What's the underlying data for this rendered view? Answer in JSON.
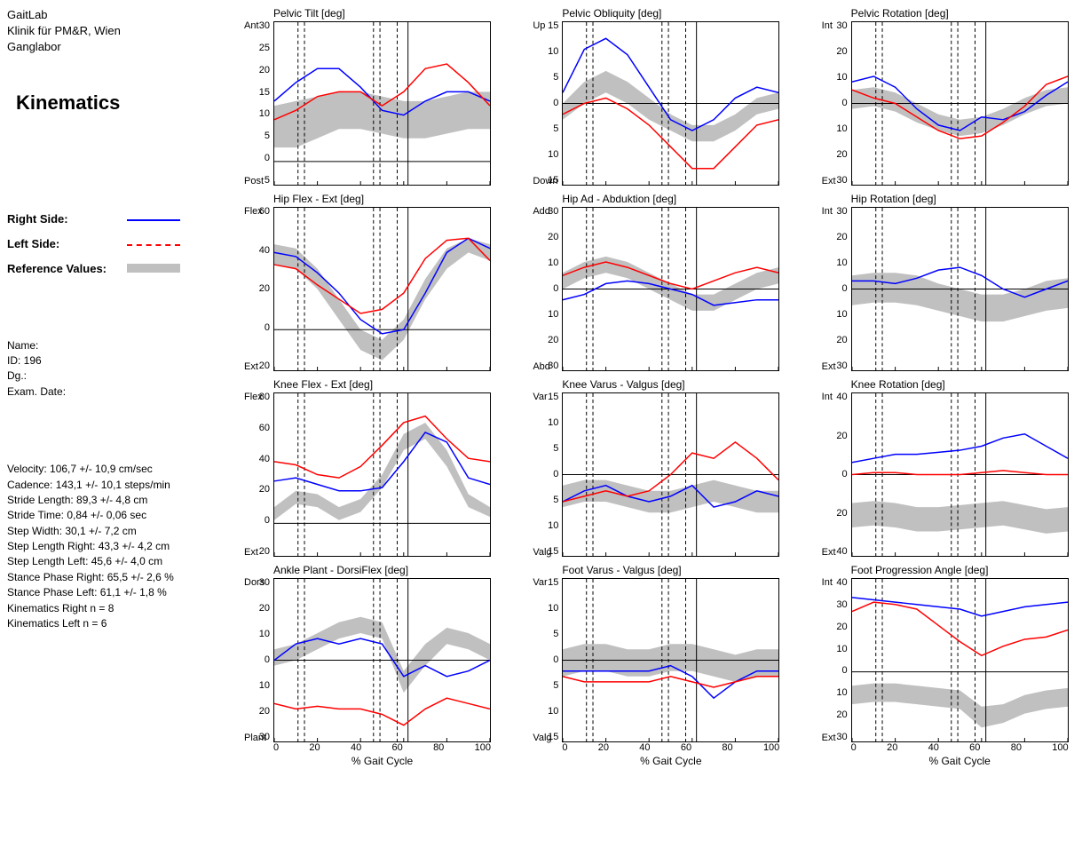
{
  "header": {
    "lab": "GaitLab",
    "clinic": "Klinik für PM&R, Wien",
    "dept": "Ganglabor",
    "title": "Kinematics"
  },
  "legend": {
    "right": "Right Side:",
    "left": "Left Side:",
    "ref": "Reference Values:"
  },
  "colors": {
    "right": "#0000ff",
    "left": "#ff0000",
    "ref": "#c0c0c0",
    "axis": "#000000",
    "border": "#000000",
    "bg": "#ffffff"
  },
  "meta": {
    "name_label": "Name:",
    "id_label": "ID: 196",
    "dg_label": "Dg.:",
    "date_label": "Exam. Date:"
  },
  "stats": [
    "Velocity: 106,7 +/- 10,9 cm/sec",
    "Cadence: 143,1 +/- 10,1 steps/min",
    "Stride Length:  89,3 +/- 4,8 cm",
    "Stride Time:  0,84 +/- 0,06 sec",
    "Step Width: 30,1 +/- 7,2 cm",
    "Step Length Right:  43,3 +/- 4,2 cm",
    "Step Length Left:  45,6 +/- 4,0 cm",
    "Stance Phase Right:  65,5 +/- 2,6 %",
    "Stance Phase Left:  61,1 +/- 1,8 %",
    "Kinematics Right n = 8",
    "Kinematics Left n = 6"
  ],
  "xaxis": {
    "label": "% Gait Cycle",
    "ticks": [
      0,
      20,
      40,
      60,
      80,
      100
    ]
  },
  "charts": [
    {
      "title": "Pelvic Tilt [deg]",
      "ymin": -5,
      "ymax": 30,
      "yticks": [
        30,
        25,
        20,
        15,
        10,
        5,
        0,
        5
      ],
      "top_label": "Ant",
      "bot_label": "Post",
      "vlines_dashed": [
        11,
        14,
        46,
        49,
        57
      ],
      "vlines_solid": [
        62
      ],
      "band_top": [
        12,
        13,
        14,
        15,
        15,
        14,
        13,
        13,
        14,
        15,
        15
      ],
      "band_bot": [
        3,
        3,
        5,
        7,
        7,
        6,
        5,
        5,
        6,
        7,
        7
      ],
      "right_line": [
        13,
        17,
        20,
        20,
        16,
        11,
        10,
        13,
        15,
        15,
        13
      ],
      "left_line": [
        9,
        11,
        14,
        15,
        15,
        12,
        15,
        20,
        21,
        17,
        12
      ]
    },
    {
      "title": "Pelvic Obliquity [deg]",
      "ymin": -15,
      "ymax": 15,
      "yticks": [
        15,
        10,
        5,
        0,
        5,
        10,
        15
      ],
      "top_label": "Up",
      "bot_label": "Down",
      "vlines_dashed": [
        11,
        14,
        46,
        49,
        57
      ],
      "vlines_solid": [
        62
      ],
      "band_top": [
        0,
        4,
        6,
        4,
        1,
        -2,
        -4,
        -4,
        -2,
        1,
        2
      ],
      "band_bot": [
        -3,
        0,
        2,
        0,
        -3,
        -5,
        -7,
        -7,
        -5,
        -2,
        -1
      ],
      "right_line": [
        2,
        10,
        12,
        9,
        3,
        -3,
        -5,
        -3,
        1,
        3,
        2
      ],
      "left_line": [
        -2,
        0,
        1,
        -1,
        -4,
        -8,
        -12,
        -12,
        -8,
        -4,
        -3
      ]
    },
    {
      "title": "Pelvic Rotation [deg]",
      "ymin": -30,
      "ymax": 30,
      "yticks": [
        30,
        20,
        10,
        0,
        10,
        20,
        30
      ],
      "top_label": "Int",
      "bot_label": "Ext",
      "vlines_dashed": [
        11,
        14,
        46,
        49,
        57
      ],
      "vlines_solid": [
        62
      ],
      "band_top": [
        5,
        6,
        4,
        0,
        -4,
        -6,
        -5,
        -2,
        2,
        5,
        6
      ],
      "band_bot": [
        -2,
        -1,
        -3,
        -7,
        -10,
        -12,
        -11,
        -8,
        -4,
        -1,
        0
      ],
      "right_line": [
        8,
        10,
        6,
        -2,
        -8,
        -10,
        -5,
        -6,
        -3,
        3,
        8
      ],
      "left_line": [
        5,
        2,
        0,
        -5,
        -10,
        -13,
        -12,
        -7,
        -1,
        7,
        10
      ]
    },
    {
      "title": "Hip Flex - Ext [deg]",
      "ymin": -20,
      "ymax": 60,
      "yticks": [
        60,
        40,
        20,
        0,
        20
      ],
      "top_label": "Flex",
      "bot_label": "Ext",
      "vlines_dashed": [
        11,
        14,
        46,
        49,
        57
      ],
      "vlines_solid": [
        62
      ],
      "band_top": [
        42,
        40,
        30,
        15,
        0,
        -5,
        5,
        25,
        40,
        45,
        42
      ],
      "band_bot": [
        32,
        30,
        20,
        5,
        -10,
        -15,
        -5,
        15,
        30,
        38,
        34
      ],
      "right_line": [
        38,
        36,
        28,
        18,
        5,
        -2,
        0,
        18,
        38,
        45,
        40
      ],
      "left_line": [
        32,
        30,
        22,
        15,
        8,
        10,
        18,
        35,
        44,
        45,
        34
      ]
    },
    {
      "title": "Hip Ad - Abduktion [deg]",
      "ymin": -30,
      "ymax": 30,
      "yticks": [
        30,
        20,
        10,
        0,
        10,
        20,
        30
      ],
      "top_label": "Add",
      "bot_label": "Abd",
      "vlines_dashed": [
        11,
        14,
        46,
        49,
        57
      ],
      "vlines_solid": [
        62
      ],
      "band_top": [
        6,
        10,
        12,
        10,
        6,
        2,
        -2,
        -2,
        2,
        6,
        8
      ],
      "band_bot": [
        0,
        4,
        6,
        4,
        0,
        -4,
        -8,
        -8,
        -4,
        0,
        2
      ],
      "right_line": [
        -4,
        -2,
        2,
        3,
        2,
        0,
        -2,
        -6,
        -5,
        -4,
        -4
      ],
      "left_line": [
        5,
        8,
        10,
        8,
        5,
        2,
        0,
        3,
        6,
        8,
        6
      ]
    },
    {
      "title": "Hip Rotation [deg]",
      "ymin": -30,
      "ymax": 30,
      "yticks": [
        30,
        20,
        10,
        0,
        10,
        20,
        30
      ],
      "top_label": "Int",
      "bot_label": "Ext",
      "vlines_dashed": [
        11,
        14,
        46,
        49,
        57
      ],
      "vlines_solid": [
        62
      ],
      "band_top": [
        5,
        6,
        6,
        5,
        2,
        0,
        -2,
        -2,
        0,
        3,
        4
      ],
      "band_bot": [
        -6,
        -5,
        -5,
        -6,
        -8,
        -10,
        -12,
        -12,
        -10,
        -8,
        -7
      ],
      "right_line": [
        3,
        3,
        2,
        4,
        7,
        8,
        5,
        0,
        -3,
        0,
        3
      ],
      "left_line": null
    },
    {
      "title": "Knee Flex - Ext [deg]",
      "ymin": -20,
      "ymax": 80,
      "yticks": [
        80,
        60,
        40,
        20,
        0,
        20
      ],
      "top_label": "Flex",
      "bot_label": "Ext",
      "vlines_dashed": [
        11,
        14,
        46,
        49,
        57
      ],
      "vlines_solid": [
        62
      ],
      "band_top": [
        10,
        20,
        18,
        10,
        15,
        30,
        55,
        62,
        45,
        18,
        10
      ],
      "band_bot": [
        2,
        12,
        10,
        2,
        7,
        22,
        45,
        52,
        35,
        10,
        4
      ],
      "right_line": [
        26,
        28,
        24,
        20,
        20,
        22,
        38,
        56,
        50,
        28,
        24
      ],
      "left_line": [
        38,
        36,
        30,
        28,
        35,
        48,
        62,
        66,
        52,
        40,
        38
      ]
    },
    {
      "title": "Knee Varus - Valgus [deg]",
      "ymin": -15,
      "ymax": 15,
      "yticks": [
        15,
        10,
        5,
        0,
        5,
        10,
        15
      ],
      "top_label": "Var",
      "bot_label": "Valg",
      "vlines_dashed": [
        11,
        14,
        46,
        49,
        57
      ],
      "vlines_solid": [
        62
      ],
      "band_top": [
        -2,
        -1,
        -1,
        -2,
        -3,
        -3,
        -2,
        -1,
        -2,
        -3,
        -3
      ],
      "band_bot": [
        -6,
        -5,
        -5,
        -6,
        -7,
        -7,
        -6,
        -5,
        -6,
        -7,
        -7
      ],
      "right_line": [
        -5,
        -3,
        -2,
        -4,
        -5,
        -4,
        -2,
        -6,
        -5,
        -3,
        -4
      ],
      "left_line": [
        -5,
        -4,
        -3,
        -4,
        -3,
        0,
        4,
        3,
        6,
        3,
        -1
      ]
    },
    {
      "title": "Knee Rotation [deg]",
      "ymin": -40,
      "ymax": 40,
      "yticks": [
        40,
        20,
        0,
        20,
        40
      ],
      "top_label": "Int",
      "bot_label": "Ext",
      "vlines_dashed": [
        11,
        14,
        46,
        49,
        57
      ],
      "vlines_solid": [
        62
      ],
      "band_top": [
        -14,
        -13,
        -14,
        -16,
        -16,
        -15,
        -14,
        -13,
        -15,
        -17,
        -16
      ],
      "band_bot": [
        -26,
        -25,
        -26,
        -28,
        -28,
        -27,
        -26,
        -25,
        -27,
        -29,
        -28
      ],
      "right_line": [
        6,
        8,
        10,
        10,
        11,
        12,
        14,
        18,
        20,
        14,
        8
      ],
      "left_line": [
        0,
        1,
        1,
        0,
        0,
        0,
        1,
        2,
        1,
        0,
        0
      ]
    },
    {
      "title": "Ankle Plant - DorsiFlex [deg]",
      "ymin": -30,
      "ymax": 30,
      "yticks": [
        30,
        20,
        10,
        0,
        10,
        20,
        30
      ],
      "top_label": "Dors",
      "bot_label": "Plant",
      "vlines_dashed": [
        11,
        14,
        46,
        49,
        57
      ],
      "vlines_solid": [
        62
      ],
      "band_top": [
        4,
        6,
        10,
        14,
        16,
        14,
        -4,
        6,
        12,
        10,
        6
      ],
      "band_bot": [
        -2,
        0,
        4,
        8,
        10,
        8,
        -12,
        -2,
        6,
        4,
        0
      ],
      "right_line": [
        0,
        6,
        8,
        6,
        8,
        6,
        -6,
        -2,
        -6,
        -4,
        0
      ],
      "left_line": [
        -16,
        -18,
        -17,
        -18,
        -18,
        -20,
        -24,
        -18,
        -14,
        -16,
        -18
      ]
    },
    {
      "title": "Foot Varus - Valgus [deg]",
      "ymin": -15,
      "ymax": 15,
      "yticks": [
        15,
        10,
        5,
        0,
        5,
        10,
        15
      ],
      "top_label": "Var",
      "bot_label": "Valg",
      "vlines_dashed": [
        11,
        14,
        46,
        49,
        57
      ],
      "vlines_solid": [
        62
      ],
      "band_top": [
        2,
        3,
        3,
        2,
        2,
        3,
        3,
        2,
        1,
        2,
        2
      ],
      "band_bot": [
        -3,
        -2,
        -2,
        -3,
        -3,
        -2,
        -2,
        -3,
        -4,
        -3,
        -3
      ],
      "right_line": [
        -2,
        -2,
        -2,
        -2,
        -2,
        -1,
        -3,
        -7,
        -4,
        -2,
        -2
      ],
      "left_line": [
        -3,
        -4,
        -4,
        -4,
        -4,
        -3,
        -4,
        -5,
        -4,
        -3,
        -3
      ]
    },
    {
      "title": "Foot Progression Angle [deg]",
      "ymin": -30,
      "ymax": 40,
      "yticks": [
        40,
        30,
        20,
        10,
        0,
        10,
        20,
        30
      ],
      "top_label": "Int",
      "bot_label": "Ext",
      "vlines_dashed": [
        11,
        14,
        46,
        49,
        57
      ],
      "vlines_solid": [
        62
      ],
      "band_top": [
        -6,
        -5,
        -5,
        -6,
        -7,
        -8,
        -15,
        -14,
        -10,
        -8,
        -7
      ],
      "band_bot": [
        -14,
        -13,
        -13,
        -14,
        -15,
        -16,
        -24,
        -22,
        -18,
        -16,
        -15
      ],
      "right_line": [
        32,
        31,
        30,
        29,
        28,
        27,
        24,
        26,
        28,
        29,
        30
      ],
      "left_line": [
        26,
        30,
        29,
        27,
        20,
        13,
        7,
        11,
        14,
        15,
        18
      ]
    }
  ]
}
